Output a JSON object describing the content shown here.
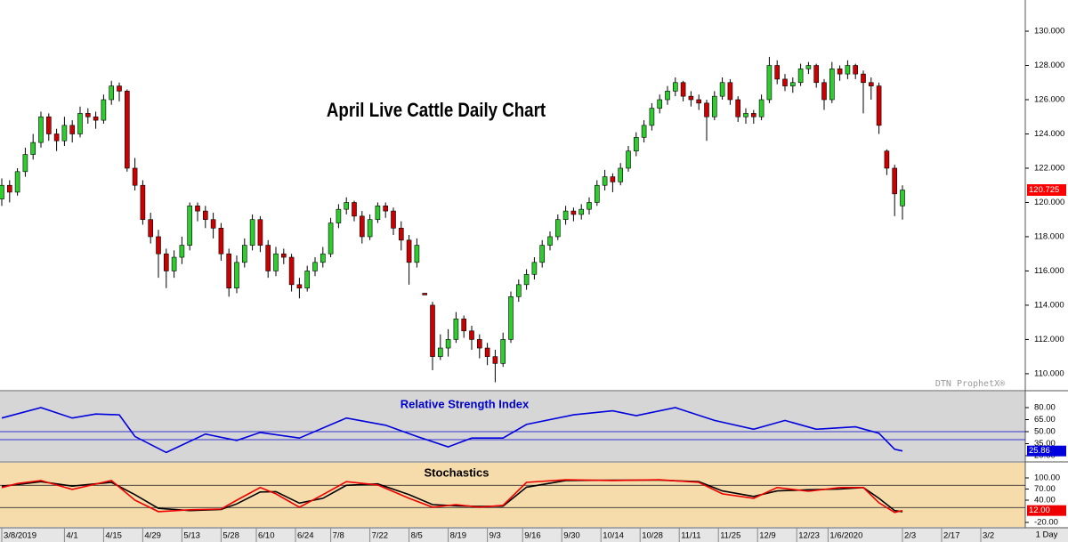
{
  "chart_data": {
    "type": "candlestick",
    "title": "April Live Cattle Daily Chart",
    "watermark": "DTN ProphetX®",
    "interval": "1 Day",
    "up_color": "#2fcc2f",
    "down_color": "#cc0000",
    "last_color": "#ff0000",
    "xlim": [
      0,
      130.5
    ],
    "ylim": [
      109.06,
      131.82
    ],
    "yticks": [
      {
        "value": 110,
        "label": "110.000"
      },
      {
        "value": 112,
        "label": "112.000"
      },
      {
        "value": 114,
        "label": "114.000"
      },
      {
        "value": 116,
        "label": "116.000"
      },
      {
        "value": 118,
        "label": "118.000"
      },
      {
        "value": 120,
        "label": "120.000"
      },
      {
        "value": 122,
        "label": "122.000"
      },
      {
        "value": 124,
        "label": "124.000"
      },
      {
        "value": 126,
        "label": "126.000"
      },
      {
        "value": 128,
        "label": "128.000"
      },
      {
        "value": 130,
        "label": "130.000"
      }
    ],
    "xticks": [
      {
        "value": 0,
        "label": "3/8/2019"
      },
      {
        "value": 8,
        "label": "4/1"
      },
      {
        "value": 13,
        "label": "4/15"
      },
      {
        "value": 18,
        "label": "4/29"
      },
      {
        "value": 23,
        "label": "5/13"
      },
      {
        "value": 28,
        "label": "5/28"
      },
      {
        "value": 32.5,
        "label": "6/10"
      },
      {
        "value": 37.5,
        "label": "6/24"
      },
      {
        "value": 42,
        "label": "7/8"
      },
      {
        "value": 47,
        "label": "7/22"
      },
      {
        "value": 52,
        "label": "8/5"
      },
      {
        "value": 57,
        "label": "8/19"
      },
      {
        "value": 62,
        "label": "9/3"
      },
      {
        "value": 66.5,
        "label": "9/16"
      },
      {
        "value": 71.5,
        "label": "9/30"
      },
      {
        "value": 76.5,
        "label": "10/14"
      },
      {
        "value": 81.5,
        "label": "10/28"
      },
      {
        "value": 86.5,
        "label": "11/11"
      },
      {
        "value": 91.5,
        "label": "11/25"
      },
      {
        "value": 96.5,
        "label": "12/9"
      },
      {
        "value": 101.5,
        "label": "12/23"
      },
      {
        "value": 105.5,
        "label": "1/6/2020"
      },
      {
        "value": 115,
        "label": "2/3"
      },
      {
        "value": 120,
        "label": "2/17"
      },
      {
        "value": 125,
        "label": "3/2"
      }
    ],
    "ohlc": [
      [
        120.2,
        121.4,
        119.8,
        121.0
      ],
      [
        121.0,
        121.3,
        120.0,
        120.6
      ],
      [
        120.6,
        122.0,
        120.4,
        121.8
      ],
      [
        121.8,
        123.2,
        121.5,
        122.8
      ],
      [
        122.8,
        124.0,
        122.5,
        123.5
      ],
      [
        123.5,
        125.3,
        123.2,
        125.0
      ],
      [
        125.0,
        125.2,
        123.6,
        124.0
      ],
      [
        124.0,
        124.3,
        123.0,
        123.6
      ],
      [
        123.6,
        125.0,
        123.3,
        124.5
      ],
      [
        124.5,
        124.8,
        123.5,
        124.0
      ],
      [
        124.0,
        125.6,
        123.8,
        125.2
      ],
      [
        125.2,
        125.5,
        124.6,
        125.0
      ],
      [
        125.0,
        125.3,
        124.3,
        124.8
      ],
      [
        124.8,
        126.3,
        124.6,
        126.0
      ],
      [
        126.0,
        127.1,
        125.7,
        126.8
      ],
      [
        126.8,
        127.0,
        125.9,
        126.5
      ],
      [
        126.5,
        126.6,
        121.8,
        122.0
      ],
      [
        122.0,
        122.6,
        120.7,
        121.0
      ],
      [
        121.0,
        121.3,
        118.7,
        119.0
      ],
      [
        119.0,
        119.4,
        117.6,
        118.0
      ],
      [
        118.0,
        118.4,
        115.6,
        117.0
      ],
      [
        117.0,
        117.3,
        115.0,
        116.0
      ],
      [
        116.0,
        117.2,
        115.6,
        116.8
      ],
      [
        116.8,
        118.0,
        116.4,
        117.5
      ],
      [
        117.5,
        120.0,
        117.2,
        119.8
      ],
      [
        119.8,
        120.0,
        118.9,
        119.5
      ],
      [
        119.5,
        119.8,
        118.5,
        119.0
      ],
      [
        119.0,
        119.4,
        117.9,
        118.5
      ],
      [
        118.5,
        118.8,
        116.6,
        117.0
      ],
      [
        117.0,
        117.3,
        114.5,
        115.0
      ],
      [
        115.0,
        116.9,
        114.7,
        116.5
      ],
      [
        116.5,
        117.9,
        116.2,
        117.5
      ],
      [
        117.5,
        119.3,
        117.2,
        119.0
      ],
      [
        119.0,
        119.2,
        117.1,
        117.5
      ],
      [
        117.5,
        117.8,
        115.6,
        116.0
      ],
      [
        116.0,
        117.4,
        115.7,
        117.0
      ],
      [
        117.0,
        117.3,
        116.4,
        116.8
      ],
      [
        116.8,
        117.0,
        114.8,
        115.2
      ],
      [
        115.2,
        115.6,
        114.4,
        115.0
      ],
      [
        115.0,
        116.3,
        114.8,
        116.0
      ],
      [
        116.0,
        116.8,
        115.7,
        116.5
      ],
      [
        116.5,
        117.4,
        116.2,
        117.0
      ],
      [
        117.0,
        119.1,
        116.8,
        118.8
      ],
      [
        118.8,
        119.9,
        118.5,
        119.6
      ],
      [
        119.6,
        120.3,
        119.3,
        120.0
      ],
      [
        120.0,
        120.1,
        118.9,
        119.2
      ],
      [
        119.2,
        119.5,
        117.6,
        118.0
      ],
      [
        118.0,
        119.3,
        117.8,
        119.0
      ],
      [
        119.0,
        120.0,
        118.8,
        119.8
      ],
      [
        119.8,
        120.0,
        119.1,
        119.5
      ],
      [
        119.5,
        119.7,
        118.1,
        118.5
      ],
      [
        118.5,
        118.9,
        117.2,
        117.8
      ],
      [
        117.8,
        118.1,
        115.2,
        116.5
      ],
      [
        116.5,
        117.9,
        116.2,
        117.5
      ],
      [
        114.7,
        114.7,
        114.6,
        114.6
      ],
      [
        114.0,
        114.2,
        110.2,
        111.0
      ],
      [
        111.0,
        112.3,
        110.8,
        111.5
      ],
      [
        111.5,
        112.6,
        111.0,
        112.0
      ],
      [
        112.0,
        113.6,
        111.8,
        113.2
      ],
      [
        113.2,
        113.4,
        112.1,
        112.5
      ],
      [
        112.5,
        112.8,
        111.4,
        112.0
      ],
      [
        112.0,
        112.3,
        110.9,
        111.5
      ],
      [
        111.5,
        111.8,
        110.5,
        111.0
      ],
      [
        111.0,
        111.4,
        109.5,
        110.6
      ],
      [
        110.6,
        112.4,
        110.4,
        112.0
      ],
      [
        112.0,
        114.8,
        111.8,
        114.5
      ],
      [
        114.5,
        115.5,
        114.2,
        115.2
      ],
      [
        115.2,
        116.1,
        114.9,
        115.8
      ],
      [
        115.8,
        116.8,
        115.5,
        116.5
      ],
      [
        116.5,
        117.8,
        116.2,
        117.5
      ],
      [
        117.5,
        118.3,
        117.2,
        118.0
      ],
      [
        118.0,
        119.3,
        117.8,
        119.0
      ],
      [
        119.0,
        119.8,
        118.7,
        119.5
      ],
      [
        119.5,
        119.7,
        118.9,
        119.3
      ],
      [
        119.3,
        119.9,
        119.0,
        119.6
      ],
      [
        119.6,
        120.3,
        119.3,
        120.0
      ],
      [
        120.0,
        121.3,
        119.8,
        121.0
      ],
      [
        121.0,
        121.9,
        120.7,
        121.5
      ],
      [
        121.5,
        121.7,
        120.6,
        121.2
      ],
      [
        121.2,
        122.3,
        121.0,
        122.0
      ],
      [
        122.0,
        123.3,
        121.8,
        123.0
      ],
      [
        123.0,
        124.1,
        122.7,
        123.8
      ],
      [
        123.8,
        124.8,
        123.5,
        124.5
      ],
      [
        124.5,
        125.8,
        124.2,
        125.5
      ],
      [
        125.5,
        126.3,
        125.2,
        126.0
      ],
      [
        126.0,
        126.8,
        125.7,
        126.5
      ],
      [
        126.5,
        127.3,
        126.2,
        127.0
      ],
      [
        127.0,
        127.1,
        125.9,
        126.2
      ],
      [
        126.2,
        126.5,
        125.6,
        126.0
      ],
      [
        126.0,
        126.3,
        125.4,
        125.8
      ],
      [
        125.8,
        126.0,
        123.6,
        125.0
      ],
      [
        125.0,
        126.5,
        124.8,
        126.2
      ],
      [
        126.2,
        127.3,
        126.0,
        127.0
      ],
      [
        127.0,
        127.2,
        125.7,
        126.0
      ],
      [
        126.0,
        126.2,
        124.7,
        125.0
      ],
      [
        125.0,
        125.5,
        124.6,
        125.2
      ],
      [
        125.2,
        125.4,
        124.6,
        125.0
      ],
      [
        125.0,
        126.3,
        124.8,
        126.0
      ],
      [
        126.0,
        128.5,
        125.8,
        128.0
      ],
      [
        128.0,
        128.3,
        126.9,
        127.2
      ],
      [
        127.2,
        127.5,
        126.5,
        126.8
      ],
      [
        126.8,
        127.3,
        126.4,
        127.0
      ],
      [
        127.0,
        128.1,
        126.8,
        127.8
      ],
      [
        127.8,
        128.2,
        127.5,
        128.0
      ],
      [
        128.0,
        128.1,
        126.7,
        127.0
      ],
      [
        127.0,
        127.2,
        125.4,
        126.0
      ],
      [
        126.0,
        128.2,
        125.8,
        127.8
      ],
      [
        127.8,
        128.0,
        127.1,
        127.5
      ],
      [
        127.5,
        128.3,
        127.2,
        128.0
      ],
      [
        128.0,
        128.1,
        127.2,
        127.5
      ],
      [
        127.5,
        127.7,
        125.2,
        127.0
      ],
      [
        127.0,
        127.3,
        126.0,
        126.8
      ],
      [
        126.8,
        127.0,
        124.0,
        124.5
      ],
      [
        123.0,
        123.1,
        121.6,
        122.0
      ],
      [
        122.0,
        122.2,
        119.2,
        120.5
      ],
      [
        119.8,
        121.0,
        119.0,
        120.725
      ]
    ],
    "rsi": {
      "type": "line",
      "title": "Relative Strength Index",
      "color": "#0000dd",
      "ylim": [
        13.33,
        100
      ],
      "levels": [
        50,
        40
      ],
      "yticks": [
        {
          "value": 80,
          "label": "80.00"
        },
        {
          "value": 65,
          "label": "65.00"
        },
        {
          "value": 50,
          "label": "50.00"
        },
        {
          "value": 35,
          "label": "35.00"
        },
        {
          "value": 20,
          "label": "20.00"
        }
      ],
      "x": [
        0,
        5,
        9,
        12,
        15,
        17,
        21,
        26,
        30,
        33,
        38,
        44,
        49,
        53,
        57,
        60,
        64,
        67,
        73,
        78,
        81,
        86,
        91,
        96,
        100,
        104,
        109,
        112,
        114,
        115
      ],
      "values": [
        67,
        80,
        67,
        72,
        71,
        44,
        24,
        47,
        39,
        49,
        42,
        67,
        58,
        44,
        31,
        42,
        42,
        59,
        71,
        76,
        70,
        80,
        64,
        53,
        64,
        53,
        56,
        48,
        28,
        25.86
      ]
    },
    "stochastics": {
      "type": "line",
      "title": "Stochastics",
      "ylim": [
        -32,
        140.8
      ],
      "levels": [
        80,
        20
      ],
      "yticks": [
        {
          "value": 100,
          "label": "100.00"
        },
        {
          "value": 70,
          "label": "70.00"
        },
        {
          "value": 40,
          "label": "40.00"
        },
        {
          "value": -20,
          "label": "-20.00"
        }
      ],
      "x": [
        0,
        2,
        5,
        9,
        14,
        17,
        20,
        24,
        28,
        30,
        33,
        35,
        38,
        41,
        44,
        48,
        52,
        55,
        58,
        61,
        64,
        67,
        72,
        78,
        84,
        89,
        92,
        96,
        99,
        103,
        107,
        110,
        112,
        114,
        115
      ],
      "series": [
        {
          "color": "#ee0000",
          "values": [
            74,
            85,
            93,
            69,
            93,
            40,
            9,
            14,
            16,
            40,
            74,
            57,
            21,
            55,
            90,
            81,
            45,
            21,
            28,
            21,
            26,
            88,
            95,
            93,
            95,
            88,
            57,
            45,
            74,
            64,
            74,
            74,
            33,
            7,
            12
          ],
          "value_labels": [
            null,
            null,
            null,
            null,
            null,
            null,
            null,
            null,
            null,
            null,
            null,
            null,
            null,
            null,
            null,
            null,
            null,
            null,
            null,
            null,
            null,
            null,
            null,
            null,
            null,
            null,
            null,
            null,
            null,
            null,
            null,
            null,
            null,
            null,
            "12.00"
          ]
        },
        {
          "color": "#000000",
          "values": [
            78,
            82,
            90,
            78,
            88,
            55,
            18,
            12,
            15,
            30,
            62,
            63,
            32,
            45,
            80,
            84,
            55,
            28,
            25,
            23,
            24,
            75,
            93,
            94,
            94,
            90,
            65,
            50,
            65,
            68,
            70,
            74,
            45,
            12,
            9
          ]
        }
      ]
    }
  }
}
